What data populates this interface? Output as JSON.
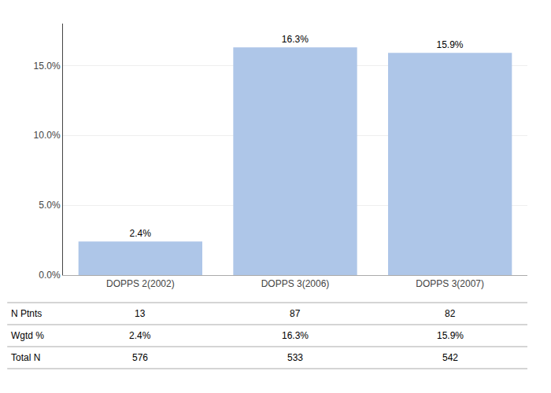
{
  "chart_data": {
    "type": "bar",
    "categories": [
      "DOPPS 2(2002)",
      "DOPPS 3(2006)",
      "DOPPS 3(2007)"
    ],
    "values": [
      2.4,
      16.3,
      15.9
    ],
    "value_labels": [
      "2.4%",
      "16.3%",
      "15.9%"
    ],
    "data_labels": true,
    "color": "#aec6e8",
    "ylim": [
      0,
      18
    ],
    "yticks": [
      {
        "value": 0,
        "label": "0.0%"
      },
      {
        "value": 5,
        "label": "5.0%"
      },
      {
        "value": 10,
        "label": "10.0%"
      },
      {
        "value": 15,
        "label": "15.0%"
      }
    ],
    "grid": true,
    "table_row_labels": [
      "N Ptnts",
      "Wgtd %",
      "Total N"
    ],
    "table_data": [
      [
        "13",
        "87",
        "82"
      ],
      [
        "2.4%",
        "16.3%",
        "15.9%"
      ],
      [
        "576",
        "533",
        "542"
      ]
    ]
  }
}
